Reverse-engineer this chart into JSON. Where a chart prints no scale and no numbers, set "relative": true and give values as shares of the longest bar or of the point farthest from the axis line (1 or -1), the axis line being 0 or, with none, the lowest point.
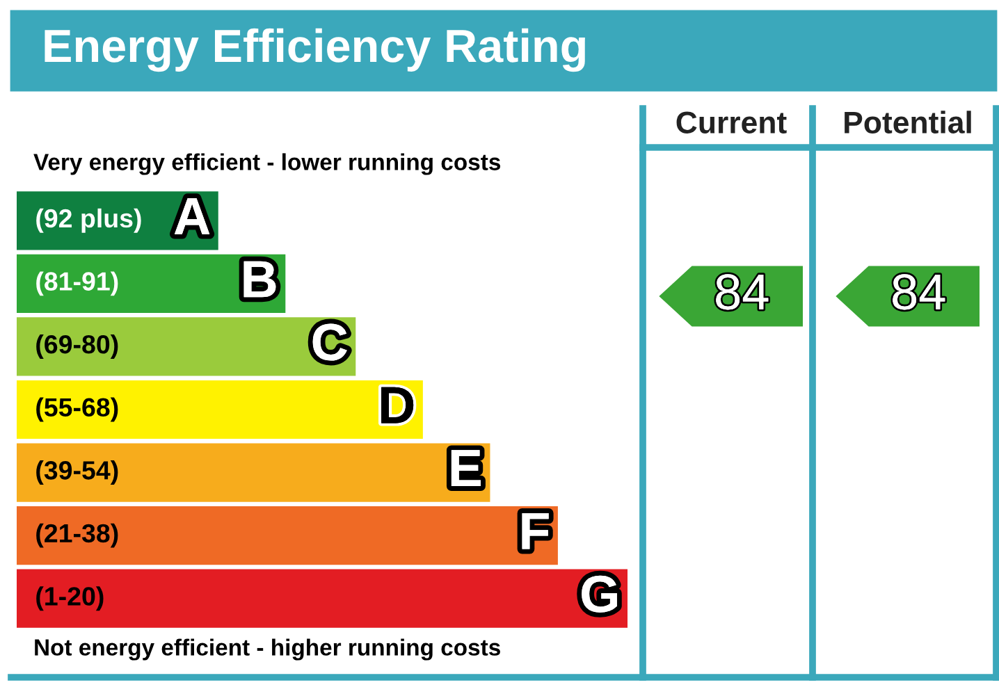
{
  "chart_data": [
    {
      "type": "bar",
      "orientation": "horizontal",
      "relative": true,
      "title": "Energy Efficiency Rating",
      "categories": [
        "A",
        "B",
        "C",
        "D",
        "E",
        "F",
        "G"
      ],
      "values": [
        0.33,
        0.44,
        0.555,
        0.665,
        0.775,
        0.886,
        1
      ],
      "colors": [
        "#0f8040",
        "#2ea836",
        "#9acb3c",
        "#fff200",
        "#f7ac1c",
        "#ef6a25",
        "#e31d23"
      ],
      "annotations": [
        "Very energy efficient - lower running costs",
        "Not energy efficient - higher running costs",
        "(92 plus)",
        "(81-91)",
        "(69-80)",
        "(55-68)",
        "(39-54)",
        "(21-38)",
        "(1-20)"
      ]
    },
    {
      "type": "other",
      "categories": [
        "Current",
        "Potential"
      ],
      "values": [
        84,
        84
      ],
      "colors": [
        "#3aa635",
        "#3aa635"
      ],
      "data_labels": true
    }
  ]
}
